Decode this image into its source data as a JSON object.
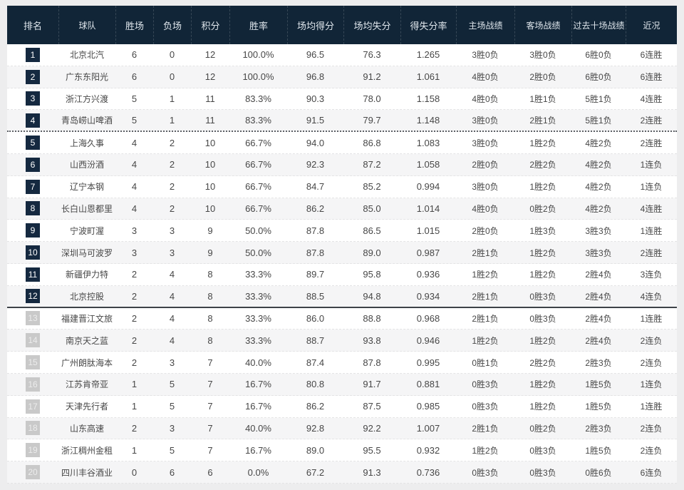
{
  "colors": {
    "page_background": "#ededee",
    "header_background": "#112537",
    "header_text": "#dfe6ec",
    "row_alt_background": "#f5f5f6",
    "body_text": "#474747",
    "rank_badge_dark": "#152940",
    "rank_badge_gray": "#c9c9c9"
  },
  "table": {
    "columns": [
      {
        "key": "rank",
        "label": "排名"
      },
      {
        "key": "team",
        "label": "球队"
      },
      {
        "key": "wins",
        "label": "胜场"
      },
      {
        "key": "losses",
        "label": "负场"
      },
      {
        "key": "points",
        "label": "积分"
      },
      {
        "key": "win_rate",
        "label": "胜率"
      },
      {
        "key": "avg_scored",
        "label": "场均得分"
      },
      {
        "key": "avg_allowed",
        "label": "场均失分"
      },
      {
        "key": "score_ratio",
        "label": "得失分率"
      },
      {
        "key": "home_record",
        "label": "主场战绩"
      },
      {
        "key": "away_record",
        "label": "客场战绩"
      },
      {
        "key": "last10_record",
        "label": "过去十场战绩"
      },
      {
        "key": "recent_form",
        "label": "近况"
      }
    ],
    "rows": [
      {
        "rank": "1",
        "team": "北京北汽",
        "wins": "6",
        "losses": "0",
        "points": "12",
        "win_rate": "100.0%",
        "avg_scored": "96.5",
        "avg_allowed": "76.3",
        "score_ratio": "1.265",
        "home_record": "3胜0负",
        "away_record": "3胜0负",
        "last10_record": "6胜0负",
        "recent_form": "6连胜",
        "badge": "dark"
      },
      {
        "rank": "2",
        "team": "广东东阳光",
        "wins": "6",
        "losses": "0",
        "points": "12",
        "win_rate": "100.0%",
        "avg_scored": "96.8",
        "avg_allowed": "91.2",
        "score_ratio": "1.061",
        "home_record": "4胜0负",
        "away_record": "2胜0负",
        "last10_record": "6胜0负",
        "recent_form": "6连胜",
        "badge": "dark"
      },
      {
        "rank": "3",
        "team": "浙江方兴渡",
        "wins": "5",
        "losses": "1",
        "points": "11",
        "win_rate": "83.3%",
        "avg_scored": "90.3",
        "avg_allowed": "78.0",
        "score_ratio": "1.158",
        "home_record": "4胜0负",
        "away_record": "1胜1负",
        "last10_record": "5胜1负",
        "recent_form": "4连胜",
        "badge": "dark"
      },
      {
        "rank": "4",
        "team": "青岛崂山啤酒",
        "wins": "5",
        "losses": "1",
        "points": "11",
        "win_rate": "83.3%",
        "avg_scored": "91.5",
        "avg_allowed": "79.7",
        "score_ratio": "1.148",
        "home_record": "3胜0负",
        "away_record": "2胜1负",
        "last10_record": "5胜1负",
        "recent_form": "2连胜",
        "badge": "dark",
        "divider_after": "dashed"
      },
      {
        "rank": "5",
        "team": "上海久事",
        "wins": "4",
        "losses": "2",
        "points": "10",
        "win_rate": "66.7%",
        "avg_scored": "94.0",
        "avg_allowed": "86.8",
        "score_ratio": "1.083",
        "home_record": "3胜0负",
        "away_record": "1胜2负",
        "last10_record": "4胜2负",
        "recent_form": "2连胜",
        "badge": "dark"
      },
      {
        "rank": "6",
        "team": "山西汾酒",
        "wins": "4",
        "losses": "2",
        "points": "10",
        "win_rate": "66.7%",
        "avg_scored": "92.3",
        "avg_allowed": "87.2",
        "score_ratio": "1.058",
        "home_record": "2胜0负",
        "away_record": "2胜2负",
        "last10_record": "4胜2负",
        "recent_form": "1连负",
        "badge": "dark"
      },
      {
        "rank": "7",
        "team": "辽宁本钢",
        "wins": "4",
        "losses": "2",
        "points": "10",
        "win_rate": "66.7%",
        "avg_scored": "84.7",
        "avg_allowed": "85.2",
        "score_ratio": "0.994",
        "home_record": "3胜0负",
        "away_record": "1胜2负",
        "last10_record": "4胜2负",
        "recent_form": "1连负",
        "badge": "dark"
      },
      {
        "rank": "8",
        "team": "长白山恩都里",
        "wins": "4",
        "losses": "2",
        "points": "10",
        "win_rate": "66.7%",
        "avg_scored": "86.2",
        "avg_allowed": "85.0",
        "score_ratio": "1.014",
        "home_record": "4胜0负",
        "away_record": "0胜2负",
        "last10_record": "4胜2负",
        "recent_form": "4连胜",
        "badge": "dark"
      },
      {
        "rank": "9",
        "team": "宁波町渥",
        "wins": "3",
        "losses": "3",
        "points": "9",
        "win_rate": "50.0%",
        "avg_scored": "87.8",
        "avg_allowed": "86.5",
        "score_ratio": "1.015",
        "home_record": "2胜0负",
        "away_record": "1胜3负",
        "last10_record": "3胜3负",
        "recent_form": "1连胜",
        "badge": "dark"
      },
      {
        "rank": "10",
        "team": "深圳马可波罗",
        "wins": "3",
        "losses": "3",
        "points": "9",
        "win_rate": "50.0%",
        "avg_scored": "87.8",
        "avg_allowed": "89.0",
        "score_ratio": "0.987",
        "home_record": "2胜1负",
        "away_record": "1胜2负",
        "last10_record": "3胜3负",
        "recent_form": "2连胜",
        "badge": "dark"
      },
      {
        "rank": "11",
        "team": "新疆伊力特",
        "wins": "2",
        "losses": "4",
        "points": "8",
        "win_rate": "33.3%",
        "avg_scored": "89.7",
        "avg_allowed": "95.8",
        "score_ratio": "0.936",
        "home_record": "1胜2负",
        "away_record": "1胜2负",
        "last10_record": "2胜4负",
        "recent_form": "3连负",
        "badge": "dark"
      },
      {
        "rank": "12",
        "team": "北京控股",
        "wins": "2",
        "losses": "4",
        "points": "8",
        "win_rate": "33.3%",
        "avg_scored": "88.5",
        "avg_allowed": "94.8",
        "score_ratio": "0.934",
        "home_record": "2胜1负",
        "away_record": "0胜3负",
        "last10_record": "2胜4负",
        "recent_form": "4连负",
        "badge": "dark",
        "divider_after": "solid"
      },
      {
        "rank": "13",
        "team": "福建晋江文旅",
        "wins": "2",
        "losses": "4",
        "points": "8",
        "win_rate": "33.3%",
        "avg_scored": "86.0",
        "avg_allowed": "88.8",
        "score_ratio": "0.968",
        "home_record": "2胜1负",
        "away_record": "0胜3负",
        "last10_record": "2胜4负",
        "recent_form": "1连胜",
        "badge": "gray"
      },
      {
        "rank": "14",
        "team": "南京天之蓝",
        "wins": "2",
        "losses": "4",
        "points": "8",
        "win_rate": "33.3%",
        "avg_scored": "88.7",
        "avg_allowed": "93.8",
        "score_ratio": "0.946",
        "home_record": "1胜2负",
        "away_record": "1胜2负",
        "last10_record": "2胜4负",
        "recent_form": "2连负",
        "badge": "gray"
      },
      {
        "rank": "15",
        "team": "广州朗肽海本",
        "wins": "2",
        "losses": "3",
        "points": "7",
        "win_rate": "40.0%",
        "avg_scored": "87.4",
        "avg_allowed": "87.8",
        "score_ratio": "0.995",
        "home_record": "0胜1负",
        "away_record": "2胜2负",
        "last10_record": "2胜3负",
        "recent_form": "2连负",
        "badge": "gray"
      },
      {
        "rank": "16",
        "team": "江苏肯帝亚",
        "wins": "1",
        "losses": "5",
        "points": "7",
        "win_rate": "16.7%",
        "avg_scored": "80.8",
        "avg_allowed": "91.7",
        "score_ratio": "0.881",
        "home_record": "0胜3负",
        "away_record": "1胜2负",
        "last10_record": "1胜5负",
        "recent_form": "1连负",
        "badge": "gray"
      },
      {
        "rank": "17",
        "team": "天津先行者",
        "wins": "1",
        "losses": "5",
        "points": "7",
        "win_rate": "16.7%",
        "avg_scored": "86.2",
        "avg_allowed": "87.5",
        "score_ratio": "0.985",
        "home_record": "0胜3负",
        "away_record": "1胜2负",
        "last10_record": "1胜5负",
        "recent_form": "1连胜",
        "badge": "gray"
      },
      {
        "rank": "18",
        "team": "山东高速",
        "wins": "2",
        "losses": "3",
        "points": "7",
        "win_rate": "40.0%",
        "avg_scored": "92.8",
        "avg_allowed": "92.2",
        "score_ratio": "1.007",
        "home_record": "2胜1负",
        "away_record": "0胜2负",
        "last10_record": "2胜3负",
        "recent_form": "2连负",
        "badge": "gray"
      },
      {
        "rank": "19",
        "team": "浙江稠州金租",
        "wins": "1",
        "losses": "5",
        "points": "7",
        "win_rate": "16.7%",
        "avg_scored": "89.0",
        "avg_allowed": "95.5",
        "score_ratio": "0.932",
        "home_record": "1胜2负",
        "away_record": "0胜3负",
        "last10_record": "1胜5负",
        "recent_form": "2连负",
        "badge": "gray"
      },
      {
        "rank": "20",
        "team": "四川丰谷酒业",
        "wins": "0",
        "losses": "6",
        "points": "6",
        "win_rate": "0.0%",
        "avg_scored": "67.2",
        "avg_allowed": "91.3",
        "score_ratio": "0.736",
        "home_record": "0胜3负",
        "away_record": "0胜3负",
        "last10_record": "0胜6负",
        "recent_form": "6连负",
        "badge": "gray"
      }
    ]
  }
}
